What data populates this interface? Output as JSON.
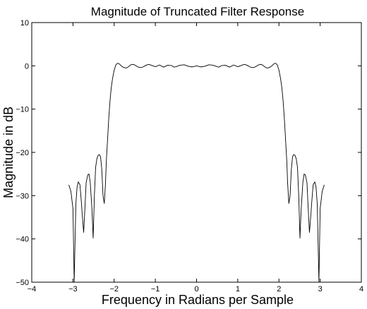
{
  "chart_data": {
    "type": "line",
    "title": "Magnitude of Truncated Filter Response",
    "xlabel": "Frequency in Radians per Sample",
    "ylabel": "Magnitude in dB",
    "xlim": [
      -4,
      4
    ],
    "ylim": [
      -50,
      10
    ],
    "xticks": [
      -4,
      -3,
      -2,
      -1,
      0,
      1,
      2,
      3,
      4
    ],
    "xtick_labels": [
      "−4",
      "−3",
      "−2",
      "−1",
      "0",
      "1",
      "2",
      "3",
      "4"
    ],
    "yticks": [
      -50,
      -40,
      -30,
      -20,
      -10,
      0,
      10
    ],
    "ytick_labels": [
      "−50",
      "−40",
      "−30",
      "−20",
      "−10",
      "0",
      "10"
    ],
    "grid": false,
    "legend": "none",
    "line_color": "#000000",
    "series": [
      {
        "x": [
          -3.1,
          -3.05,
          -3.0,
          -2.97,
          -2.93,
          -2.9,
          -2.87,
          -2.83,
          -2.8,
          -2.77,
          -2.74,
          -2.71,
          -2.68,
          -2.64,
          -2.61,
          -2.58,
          -2.54,
          -2.51,
          -2.48,
          -2.45,
          -2.42,
          -2.39,
          -2.36,
          -2.33,
          -2.3,
          -2.27,
          -2.24,
          -2.21,
          -2.19,
          -2.16,
          -2.13,
          -2.1,
          -2.07,
          -2.04,
          -2.0,
          -1.96,
          -1.92,
          -1.88,
          -1.84,
          -1.8,
          -1.76,
          -1.72,
          -1.68,
          -1.64,
          -1.6,
          -1.55,
          -1.5,
          -1.45,
          -1.4,
          -1.35,
          -1.3,
          -1.25,
          -1.2,
          -1.15,
          -1.1,
          -1.0,
          -0.9,
          -0.8,
          -0.7,
          -0.6,
          -0.55,
          -0.5,
          -0.4,
          -0.3,
          -0.2,
          -0.1,
          0.0,
          0.1,
          0.2,
          0.3,
          0.4,
          0.5,
          0.55,
          0.6,
          0.7,
          0.8,
          0.9,
          1.0,
          1.1,
          1.15,
          1.2,
          1.25,
          1.3,
          1.35,
          1.4,
          1.45,
          1.5,
          1.55,
          1.6,
          1.64,
          1.68,
          1.72,
          1.76,
          1.8,
          1.84,
          1.88,
          1.92,
          1.96,
          2.0,
          2.04,
          2.07,
          2.1,
          2.13,
          2.16,
          2.19,
          2.21,
          2.24,
          2.27,
          2.3,
          2.33,
          2.36,
          2.39,
          2.42,
          2.45,
          2.48,
          2.51,
          2.54,
          2.58,
          2.61,
          2.64,
          2.68,
          2.71,
          2.74,
          2.77,
          2.8,
          2.83,
          2.87,
          2.9,
          2.93,
          2.97,
          3.0,
          3.05,
          3.1
        ],
        "y": [
          -27.5,
          -29,
          -33,
          -50,
          -32,
          -28,
          -26.8,
          -27.5,
          -31,
          -35,
          -38.5,
          -33,
          -27,
          -25.2,
          -25,
          -27,
          -33,
          -39.8,
          -30,
          -23.5,
          -21.5,
          -20.7,
          -20.5,
          -21,
          -24,
          -30,
          -31.8,
          -27,
          -22,
          -17,
          -12,
          -8,
          -5,
          -3,
          -1,
          0.2,
          0.6,
          0.5,
          0.1,
          -0.2,
          -0.4,
          -0.5,
          -0.4,
          -0.1,
          0.2,
          0.35,
          0.2,
          -0.1,
          -0.35,
          -0.4,
          -0.25,
          0.0,
          0.25,
          0.3,
          0.15,
          -0.2,
          0.2,
          -0.3,
          0.15,
          0.05,
          -0.3,
          -0.2,
          0.15,
          0.25,
          -0.1,
          -0.25,
          0.0,
          -0.25,
          -0.1,
          0.25,
          0.15,
          -0.2,
          -0.3,
          0.05,
          0.15,
          -0.3,
          0.2,
          -0.2,
          0.15,
          0.3,
          0.25,
          0.0,
          -0.25,
          -0.4,
          -0.35,
          -0.1,
          0.2,
          0.35,
          0.2,
          -0.1,
          -0.4,
          -0.5,
          -0.4,
          -0.2,
          0.1,
          0.5,
          0.6,
          0.2,
          -1,
          -3,
          -5,
          -8,
          -12,
          -17,
          -22,
          -27,
          -31.8,
          -30,
          -24,
          -21,
          -20.5,
          -20.7,
          -21.5,
          -23.5,
          -30,
          -39.8,
          -33,
          -27,
          -25,
          -25.2,
          -27,
          -33,
          -38.5,
          -35,
          -31,
          -27.5,
          -26.8,
          -28,
          -32,
          -50,
          -33,
          -29,
          -27.5
        ]
      }
    ]
  }
}
